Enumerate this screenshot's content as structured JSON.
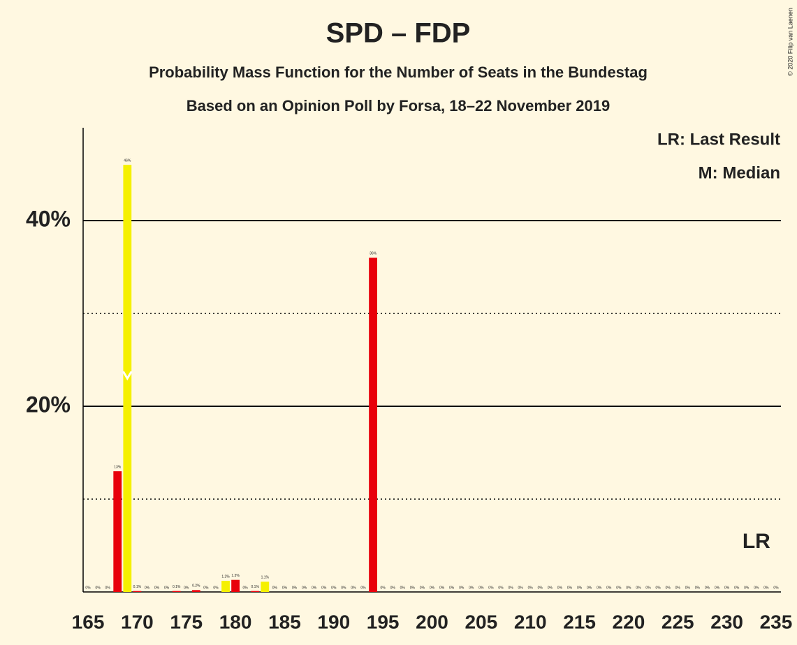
{
  "chart_data": {
    "type": "bar",
    "title": "SPD – FDP",
    "subtitle": "Probability Mass Function for the Number of Seats in the Bundestag",
    "subtitle2": "Based on an Opinion Poll by Forsa, 18–22 November 2019",
    "legend": [
      "LR: Last Result",
      "M: Median"
    ],
    "copyright": "© 2020 Filip van Laenen",
    "x": [
      165,
      166,
      167,
      168,
      169,
      170,
      171,
      172,
      173,
      174,
      175,
      176,
      177,
      178,
      179,
      180,
      181,
      182,
      183,
      184,
      185,
      186,
      187,
      188,
      189,
      190,
      191,
      192,
      193,
      194,
      195,
      196,
      197,
      198,
      199,
      200,
      201,
      202,
      203,
      204,
      205,
      206,
      207,
      208,
      209,
      210,
      211,
      212,
      213,
      214,
      215,
      216,
      217,
      218,
      219,
      220,
      221,
      222,
      223,
      224,
      225,
      226,
      227,
      228,
      229,
      230,
      231,
      232,
      233,
      234,
      235
    ],
    "values": [
      0,
      0,
      0,
      13,
      46,
      0.1,
      0,
      0,
      0,
      0.1,
      0,
      0.2,
      0,
      0,
      1.2,
      1.3,
      0,
      0.1,
      1.1,
      0,
      0,
      0,
      0,
      0,
      0,
      0,
      0,
      0,
      0,
      36,
      0,
      0,
      0,
      0,
      0,
      0,
      0,
      0,
      0,
      0,
      0,
      0,
      0,
      0,
      0,
      0,
      0,
      0,
      0,
      0,
      0,
      0,
      0,
      0,
      0,
      0,
      0,
      0,
      0,
      0,
      0,
      0,
      0,
      0,
      0,
      0,
      0,
      0,
      0,
      0,
      0
    ],
    "value_labels": [
      "0%",
      "0%",
      "0%",
      "13%",
      "46%",
      "0.1%",
      "0%",
      "0%",
      "0%",
      "0.1%",
      "0%",
      "0.2%",
      "0%",
      "0%",
      "1.2%",
      "1.3%",
      "0%",
      "0.1%",
      "1.1%",
      "0%",
      "0%",
      "0%",
      "0%",
      "0%",
      "0%",
      "0%",
      "0%",
      "0%",
      "0%",
      "36%",
      "0%",
      "0%",
      "0%",
      "0%",
      "0%",
      "0%",
      "0%",
      "0%",
      "0%",
      "0%",
      "0%",
      "0%",
      "0%",
      "0%",
      "0%",
      "0%",
      "0%",
      "0%",
      "0%",
      "0%",
      "0%",
      "0%",
      "0%",
      "0%",
      "0%",
      "0%",
      "0%",
      "0%",
      "0%",
      "0%",
      "0%",
      "0%",
      "0%",
      "0%",
      "0%",
      "0%",
      "0%",
      "0%",
      "0%",
      "0%",
      "0%"
    ],
    "colors": [
      "#e8000b",
      "#e8000b",
      "#e8000b",
      "#e8000b",
      "#f5f000",
      "#e8000b",
      "#e8000b",
      "#e8000b",
      "#e8000b",
      "#e8000b",
      "#e8000b",
      "#e8000b",
      "#e8000b",
      "#e8000b",
      "#f5f000",
      "#e8000b",
      "#e8000b",
      "#e8000b",
      "#f5f000",
      "#e8000b",
      "#e8000b",
      "#e8000b",
      "#e8000b",
      "#e8000b",
      "#e8000b",
      "#e8000b",
      "#e8000b",
      "#e8000b",
      "#e8000b",
      "#e8000b",
      "#e8000b",
      "#e8000b",
      "#e8000b",
      "#e8000b",
      "#e8000b",
      "#e8000b",
      "#e8000b",
      "#e8000b",
      "#e8000b",
      "#e8000b",
      "#e8000b",
      "#e8000b",
      "#e8000b",
      "#e8000b",
      "#e8000b",
      "#e8000b",
      "#e8000b",
      "#e8000b",
      "#e8000b",
      "#e8000b",
      "#e8000b",
      "#e8000b",
      "#e8000b",
      "#e8000b",
      "#e8000b",
      "#e8000b",
      "#e8000b",
      "#e8000b",
      "#e8000b",
      "#e8000b",
      "#e8000b",
      "#e8000b",
      "#e8000b",
      "#e8000b",
      "#e8000b",
      "#e8000b",
      "#e8000b",
      "#e8000b",
      "#e8000b",
      "#e8000b",
      "#e8000b"
    ],
    "xlim": [
      164.5,
      235.5
    ],
    "xticks": [
      165,
      170,
      175,
      180,
      185,
      190,
      195,
      200,
      205,
      210,
      215,
      220,
      225,
      230,
      235
    ],
    "ylim": [
      0,
      50
    ],
    "yticks": [
      {
        "value": 20,
        "label": "20%"
      },
      {
        "value": 40,
        "label": "40%"
      }
    ],
    "minor_yticks": [
      10,
      30
    ],
    "median_seat": 169,
    "last_result": {
      "seat": 233,
      "label": "LR"
    }
  }
}
